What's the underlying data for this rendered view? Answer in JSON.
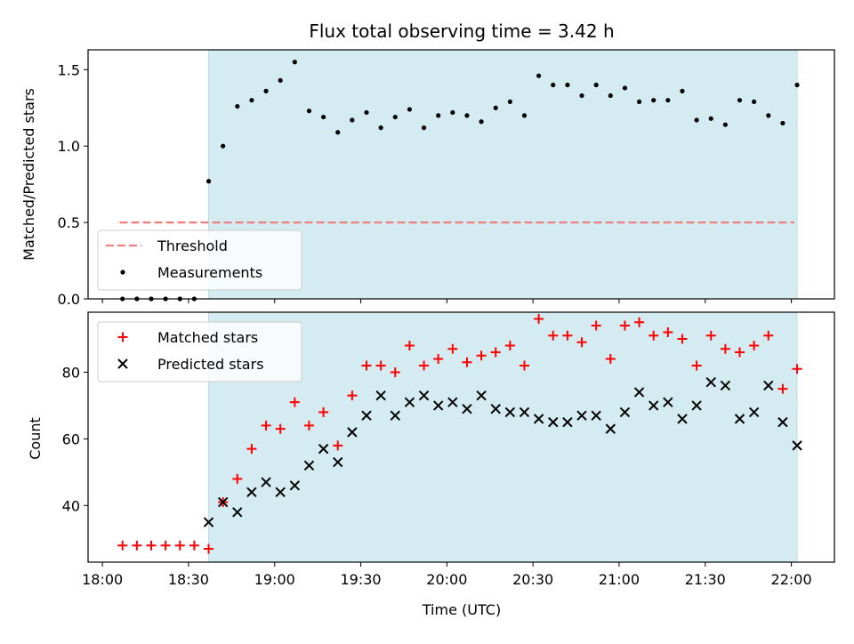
{
  "title": "Flux total observing time = 3.42 h",
  "chart_data": [
    {
      "panel": "top",
      "type": "scatter",
      "ylabel": "Matched/Predicted stars",
      "xlim_min": [
        1075,
        1335
      ],
      "ylim": [
        0,
        1.63
      ],
      "yticks": [
        0.0,
        0.5,
        1.0,
        1.5
      ],
      "ytick_labels": [
        "0.0",
        "0.5",
        "1.0",
        "1.5"
      ],
      "observing_span_min": [
        1117,
        1322
      ],
      "threshold": {
        "name": "Threshold",
        "value": 0.5,
        "x_range_min": [
          1086,
          1321
        ],
        "color": "#f08080",
        "style": "dashed"
      },
      "legend": {
        "placement": "lower-left",
        "entries": [
          "Threshold",
          "Measurements"
        ]
      },
      "series": [
        {
          "name": "Measurements",
          "marker": "dot",
          "color": "#000000",
          "x_min": [
            1087,
            1092,
            1097,
            1102,
            1107,
            1112,
            1117,
            1122,
            1127,
            1132,
            1137,
            1142,
            1147,
            1152,
            1157,
            1162,
            1167,
            1172,
            1177,
            1182,
            1187,
            1192,
            1197,
            1202,
            1207,
            1212,
            1217,
            1222,
            1227,
            1232,
            1237,
            1242,
            1247,
            1252,
            1257,
            1262,
            1267,
            1272,
            1277,
            1282,
            1287,
            1292,
            1297,
            1302,
            1307,
            1312,
            1317,
            1322
          ],
          "y": [
            0,
            0,
            0,
            0,
            0,
            0,
            0.77,
            1.0,
            1.26,
            1.3,
            1.36,
            1.43,
            1.55,
            1.23,
            1.19,
            1.09,
            1.17,
            1.22,
            1.12,
            1.19,
            1.24,
            1.12,
            1.2,
            1.22,
            1.2,
            1.16,
            1.25,
            1.29,
            1.2,
            1.46,
            1.4,
            1.4,
            1.33,
            1.4,
            1.33,
            1.38,
            1.29,
            1.3,
            1.3,
            1.36,
            1.17,
            1.18,
            1.14,
            1.3,
            1.29,
            1.2,
            1.15,
            1.4
          ]
        }
      ]
    },
    {
      "panel": "bottom",
      "type": "scatter",
      "ylabel": "Count",
      "xlabel": "Time (UTC)",
      "xlim_min": [
        1075,
        1335
      ],
      "ylim": [
        23,
        98
      ],
      "yticks": [
        40,
        60,
        80
      ],
      "ytick_labels": [
        "40",
        "60",
        "80"
      ],
      "xticks_min": [
        1080,
        1110,
        1140,
        1170,
        1200,
        1230,
        1260,
        1290,
        1320
      ],
      "xtick_labels": [
        "18:00",
        "18:30",
        "19:00",
        "19:30",
        "20:00",
        "20:30",
        "21:00",
        "21:30",
        "22:00"
      ],
      "observing_span_min": [
        1117,
        1322
      ],
      "legend": {
        "placement": "upper-left",
        "entries": [
          "Matched stars",
          "Predicted stars"
        ]
      },
      "series": [
        {
          "name": "Matched stars",
          "marker": "plus",
          "color": "#ff0000",
          "x_min": [
            1087,
            1092,
            1097,
            1102,
            1107,
            1112,
            1117,
            1122,
            1127,
            1132,
            1137,
            1142,
            1147,
            1152,
            1157,
            1162,
            1167,
            1172,
            1177,
            1182,
            1187,
            1192,
            1197,
            1202,
            1207,
            1212,
            1217,
            1222,
            1227,
            1232,
            1237,
            1242,
            1247,
            1252,
            1257,
            1262,
            1267,
            1272,
            1277,
            1282,
            1287,
            1292,
            1297,
            1302,
            1307,
            1312,
            1317,
            1322
          ],
          "y": [
            28,
            28,
            28,
            28,
            28,
            28,
            27,
            41,
            48,
            57,
            64,
            63,
            71,
            64,
            68,
            58,
            73,
            82,
            82,
            80,
            88,
            82,
            84,
            87,
            83,
            85,
            86,
            88,
            82,
            96,
            91,
            91,
            89,
            94,
            84,
            94,
            95,
            91,
            92,
            90,
            82,
            91,
            87,
            86,
            88,
            91,
            75,
            81
          ]
        },
        {
          "name": "Predicted stars",
          "marker": "x",
          "color": "#000000",
          "x_min": [
            1117,
            1122,
            1127,
            1132,
            1137,
            1142,
            1147,
            1152,
            1157,
            1162,
            1167,
            1172,
            1177,
            1182,
            1187,
            1192,
            1197,
            1202,
            1207,
            1212,
            1217,
            1222,
            1227,
            1232,
            1237,
            1242,
            1247,
            1252,
            1257,
            1262,
            1267,
            1272,
            1277,
            1282,
            1287,
            1292,
            1297,
            1302,
            1307,
            1312,
            1317,
            1322
          ],
          "y": [
            35,
            41,
            38,
            44,
            47,
            44,
            46,
            52,
            57,
            53,
            62,
            67,
            73,
            67,
            71,
            73,
            70,
            71,
            69,
            73,
            69,
            68,
            68,
            66,
            65,
            65,
            67,
            67,
            63,
            68,
            74,
            70,
            71,
            66,
            70,
            77,
            76,
            66,
            68,
            76,
            65,
            58
          ]
        }
      ]
    }
  ]
}
